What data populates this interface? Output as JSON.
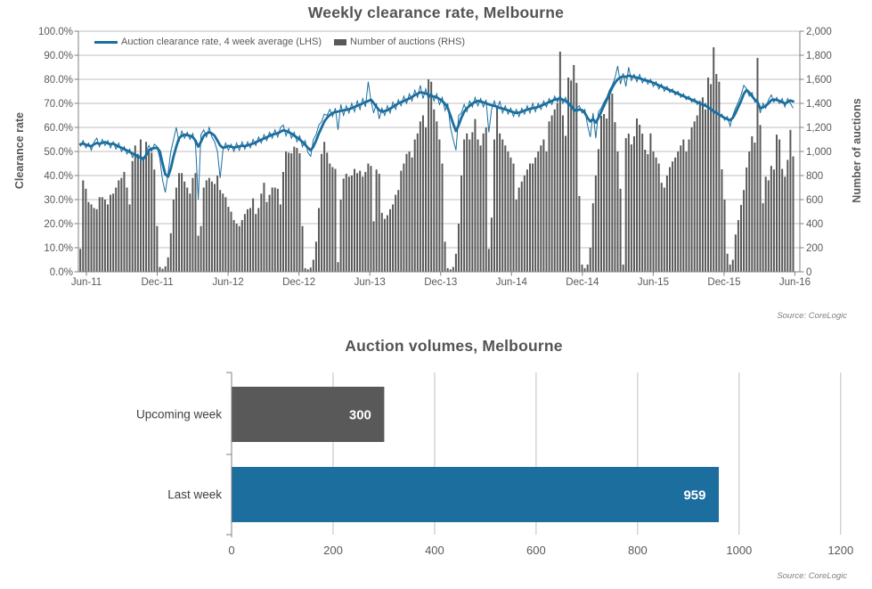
{
  "colors": {
    "blue": "#1B6E9E",
    "bar_gray": "#595959",
    "grid": "#BFBFBF",
    "axis_line": "#808080",
    "tick_text": "#595959",
    "category_text": "#404040",
    "title_text": "#535353",
    "source_text": "#7F7F7F",
    "bar_label_text": "#FFFFFF"
  },
  "chart_data": [
    {
      "type": "line",
      "title": "Weekly clearance rate, Melbourne",
      "source": "Source: CoreLogic",
      "legend": [
        "Auction clearance rate, 4 week average (LHS)",
        "Number of auctions (RHS)"
      ],
      "x_tick_labels": [
        "Jun-11",
        "Dec-11",
        "Jun-12",
        "Dec-12",
        "Jun-13",
        "Dec-13",
        "Jun-14",
        "Dec-14",
        "Jun-15",
        "Dec-15",
        "Jun-16"
      ],
      "y_left": {
        "label": "Clearance rate",
        "min": 0,
        "max": 100,
        "ticks": [
          "100.0%",
          "90.0%",
          "80.0%",
          "70.0%",
          "60.0%",
          "50.0%",
          "40.0%",
          "30.0%",
          "20.0%",
          "10.0%",
          "0.0%"
        ]
      },
      "y_right": {
        "label": "Number of auctions",
        "min": 0,
        "max": 2000,
        "ticks": [
          "2,000",
          "1,800",
          "1,600",
          "1,400",
          "1,200",
          "1,000",
          "800",
          "600",
          "400",
          "200",
          "0"
        ]
      },
      "grid": true,
      "legend_position": "top-left",
      "series": [
        {
          "name": "Auction clearance rate, 4 week average (LHS)",
          "type": "line",
          "axis": "left",
          "avg_values": [
            53,
            53.3,
            52.8,
            52.5,
            52.2,
            53,
            53.5,
            53.2,
            53.6,
            53.9,
            53.4,
            53,
            53.3,
            52.6,
            52,
            51.5,
            51,
            50.4,
            49.8,
            49.2,
            48.6,
            48,
            47.5,
            47,
            48.5,
            50.5,
            51.2,
            51.4,
            51.5,
            50,
            45,
            40.5,
            39.5,
            43,
            48,
            52,
            55.5,
            56.5,
            57,
            56.8,
            56.5,
            56,
            54.5,
            52,
            54,
            56.5,
            57.5,
            58,
            57.5,
            56.5,
            54.5,
            52.5,
            51.5,
            51.8,
            52.3,
            52,
            51.6,
            51.9,
            52.1,
            52.4,
            52.2,
            52.6,
            52.9,
            53.3,
            53.8,
            54.4,
            54.9,
            55.4,
            55.9,
            56.5,
            57,
            57.3,
            57.6,
            58.2,
            58.8,
            58.5,
            58,
            57.4,
            56.6,
            55.8,
            55,
            54,
            52.8,
            51.5,
            50.5,
            52,
            54.5,
            57.5,
            60,
            62.5,
            64,
            65.2,
            66,
            66.4,
            66.6,
            66.9,
            67.1,
            67.3,
            67.6,
            68,
            68.5,
            69,
            69.5,
            70,
            70.5,
            71,
            71.5,
            70.2,
            68.5,
            67.2,
            66.5,
            66.8,
            67.1,
            67.8,
            68.5,
            69.3,
            70,
            70.5,
            71,
            71.5,
            72,
            72.7,
            73.4,
            74,
            74.6,
            74.4,
            74.1,
            73.6,
            73.1,
            72.8,
            72.5,
            71.8,
            71,
            69.8,
            68,
            65,
            61.5,
            58.5,
            61,
            64,
            66.5,
            68,
            69,
            70,
            70.5,
            71,
            70.8,
            70.4,
            70,
            69.6,
            69.2,
            69,
            68.6,
            68.1,
            67.8,
            67.5,
            67.1,
            66.7,
            66.3,
            66,
            66.2,
            66.5,
            67,
            67.4,
            67.7,
            68,
            68.2,
            68.5,
            69,
            69.5,
            70,
            70.5,
            71,
            71.5,
            71.8,
            72,
            71.5,
            71,
            70.2,
            68.8,
            67.5,
            67,
            67.5,
            67.2,
            66,
            64,
            62.5,
            63.5,
            62,
            64,
            66.5,
            69,
            71.5,
            74,
            76.5,
            78.5,
            80,
            80.8,
            81.2,
            81,
            81.5,
            81.2,
            81,
            80.7,
            80.4,
            80,
            79.6,
            79.3,
            79,
            78.5,
            78,
            77.5,
            77,
            76.5,
            76,
            75.5,
            75,
            74.5,
            74,
            73.5,
            73,
            72.5,
            72,
            71.5,
            71,
            70.5,
            70,
            69.5,
            69,
            68.3,
            67.6,
            66.8,
            66,
            65.3,
            64.6,
            64,
            63.4,
            63,
            64,
            66,
            68.5,
            71,
            74,
            75.5,
            74.5,
            73,
            71.5,
            70.5,
            68,
            68.3,
            69,
            70,
            71.3,
            71.6,
            71.4,
            71,
            70.6,
            69.9,
            70.6,
            71.2,
            70.8
          ],
          "weekly_values": [
            52,
            54.5,
            51.5,
            53.5,
            50.5,
            54,
            55.5,
            52,
            55,
            52.5,
            54.5,
            51.5,
            54,
            51,
            53.5,
            50,
            52,
            49,
            51,
            47.5,
            49.5,
            46.5,
            48.5,
            45.5,
            50,
            52.5,
            50,
            53,
            52,
            47,
            38,
            33,
            41,
            50,
            55,
            60,
            54,
            58.5,
            55.5,
            58,
            55,
            57.5,
            53,
            30,
            57,
            59,
            56,
            60,
            56,
            54,
            50,
            39,
            50.5,
            53.5,
            50.5,
            53,
            50,
            53.5,
            50.5,
            54,
            51,
            54,
            51.5,
            55,
            52.5,
            56,
            53.5,
            57,
            54.5,
            58,
            55.5,
            59,
            56,
            60,
            61,
            56.5,
            59.5,
            55.5,
            58,
            54,
            56.5,
            52,
            54.5,
            49.5,
            48,
            55,
            57,
            61,
            62.5,
            65.5,
            65,
            67.5,
            64.5,
            68,
            59,
            69.5,
            65,
            69,
            66,
            70,
            66.5,
            71,
            67.5,
            72,
            68.5,
            79,
            71,
            66,
            70,
            63.5,
            68,
            65,
            69,
            66,
            70.5,
            67.5,
            71.5,
            69,
            73,
            70,
            74,
            71,
            75.5,
            72.5,
            77.5,
            72,
            76,
            71.5,
            74.5,
            71,
            74,
            69.5,
            72.5,
            67,
            70,
            60,
            55,
            50.5,
            65,
            66,
            69.5,
            66.5,
            71,
            68.5,
            72.5,
            69,
            72,
            68.5,
            71.5,
            58,
            67.5,
            71,
            67,
            71,
            66,
            69,
            65.5,
            68,
            64.5,
            67.5,
            64.5,
            68,
            65.5,
            69,
            66,
            70,
            66.5,
            70,
            67.5,
            71,
            68.5,
            72,
            69.5,
            73,
            70.5,
            73.5,
            70,
            72.5,
            68.5,
            70.5,
            66,
            68,
            69,
            66,
            67.5,
            61,
            56,
            66,
            55.5,
            66.5,
            68,
            70.5,
            72.5,
            75.5,
            77.5,
            80.5,
            85.5,
            78,
            82.5,
            77,
            85,
            79.5,
            82,
            79,
            82,
            78.5,
            80.5,
            78,
            80,
            77,
            79,
            76,
            78,
            75,
            77,
            74.5,
            76,
            73.5,
            75,
            72.5,
            74,
            71.5,
            73,
            70.5,
            72,
            69.5,
            71,
            68.5,
            70,
            67.5,
            68.5,
            65.5,
            67,
            64.5,
            65.5,
            63,
            64.5,
            60.5,
            65,
            68,
            70.5,
            73.5,
            77.5,
            76,
            73,
            74.5,
            70.5,
            72,
            66,
            70,
            68,
            71.5,
            73.5,
            70.5,
            72.5,
            70,
            72,
            68.5,
            72,
            70,
            68
          ]
        },
        {
          "name": "Number of auctions (RHS)",
          "type": "bar",
          "axis": "right",
          "values": [
            190,
            760,
            690,
            580,
            560,
            530,
            520,
            620,
            620,
            600,
            560,
            640,
            650,
            700,
            760,
            780,
            830,
            700,
            560,
            920,
            1050,
            980,
            1100,
            950,
            1080,
            1020,
            990,
            850,
            380,
            40,
            25,
            45,
            120,
            320,
            600,
            700,
            820,
            820,
            750,
            700,
            650,
            780,
            820,
            300,
            380,
            700,
            760,
            780,
            750,
            730,
            800,
            680,
            650,
            620,
            540,
            500,
            430,
            400,
            380,
            430,
            480,
            520,
            530,
            610,
            480,
            530,
            650,
            740,
            580,
            640,
            700,
            700,
            690,
            560,
            830,
            1000,
            990,
            985,
            1040,
            1030,
            985,
            380,
            30,
            20,
            35,
            100,
            250,
            530,
            980,
            1080,
            990,
            900,
            870,
            855,
            80,
            600,
            775,
            815,
            790,
            800,
            855,
            820,
            840,
            790,
            830,
            900,
            880,
            420,
            850,
            815,
            490,
            440,
            470,
            520,
            560,
            640,
            680,
            840,
            900,
            980,
            1000,
            950,
            1100,
            1150,
            1250,
            1300,
            1200,
            1600,
            1580,
            1350,
            1250,
            1100,
            900,
            250,
            30,
            20,
            40,
            150,
            400,
            800,
            1100,
            1150,
            1100,
            1160,
            1270,
            1100,
            1050,
            1150,
            1200,
            190,
            450,
            1100,
            1370,
            1150,
            1100,
            1050,
            1000,
            950,
            900,
            600,
            700,
            750,
            800,
            850,
            900,
            900,
            950,
            1000,
            1050,
            1100,
            1000,
            1250,
            1300,
            1350,
            1400,
            1830,
            1300,
            1130,
            1615,
            1590,
            1719,
            1570,
            630,
            60,
            30,
            60,
            200,
            570,
            800,
            1020,
            1296,
            1311,
            1274,
            1504,
            1481,
            1244,
            1000,
            690,
            60,
            1111,
            1148,
            1059,
            1126,
            1274,
            1222,
            1148,
            1015,
            978,
            1150,
            1000,
            950,
            900,
            740,
            700,
            800,
            870,
            917,
            950,
            1000,
            1050,
            1100,
            1000,
            1100,
            1200,
            1250,
            1300,
            1400,
            1450,
            1350,
            1615,
            1560,
            1866,
            1644,
            1580,
            852,
            600,
            150,
            60,
            100,
            310,
            430,
            555,
            680,
            867,
            1000,
            1126,
            1074,
            1778,
            1220,
            570,
            790,
            760,
            880,
            850,
            1140,
            1100,
            855,
            790,
            930,
            1180,
            959
          ]
        }
      ]
    },
    {
      "type": "bar",
      "orientation": "horizontal",
      "title": "Auction volumes, Melbourne",
      "source": "Source: CoreLogic",
      "categories": [
        "Upcoming week",
        "Last week"
      ],
      "values": [
        300,
        959
      ],
      "value_labels": [
        "300",
        "959"
      ],
      "bar_colors": [
        "#595959",
        "#1B6E9E"
      ],
      "xlim": [
        0,
        1200
      ],
      "x_ticks": [
        0,
        200,
        400,
        600,
        800,
        1000,
        1200
      ],
      "grid": true,
      "legend_position": "none"
    }
  ]
}
